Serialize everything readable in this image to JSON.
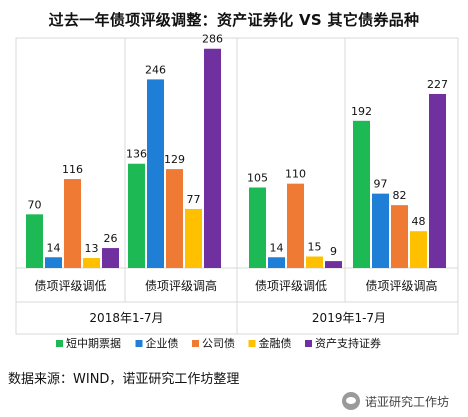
{
  "title": "过去一年债项评级调整：资产证券化 VS 其它债券品种",
  "source": "数据来源：WIND，诺亚研究工作坊整理",
  "watermark": "诺亚研究工作坊",
  "chart_data": {
    "type": "bar",
    "grid": false,
    "ylim": [
      0,
      300
    ],
    "panels": [
      {
        "period": "2018年1-7月",
        "groups": [
          {
            "label": "债项评级调低",
            "values": [
              70,
              14,
              116,
              13,
              26
            ]
          },
          {
            "label": "债项评级调高",
            "values": [
              136,
              246,
              129,
              77,
              286
            ]
          }
        ]
      },
      {
        "period": "2019年1-7月",
        "groups": [
          {
            "label": "债项评级调低",
            "values": [
              105,
              14,
              110,
              15,
              9
            ]
          },
          {
            "label": "债项评级调高",
            "values": [
              192,
              97,
              82,
              48,
              227
            ]
          }
        ]
      }
    ],
    "series": [
      {
        "name": "短中期票据",
        "color": "#1db954"
      },
      {
        "name": "企业债",
        "color": "#1f7fd6"
      },
      {
        "name": "公司债",
        "color": "#ee7a33"
      },
      {
        "name": "金融债",
        "color": "#ffc000"
      },
      {
        "name": "资产支持证券",
        "color": "#7030a0"
      }
    ],
    "legend_position": "bottom"
  }
}
